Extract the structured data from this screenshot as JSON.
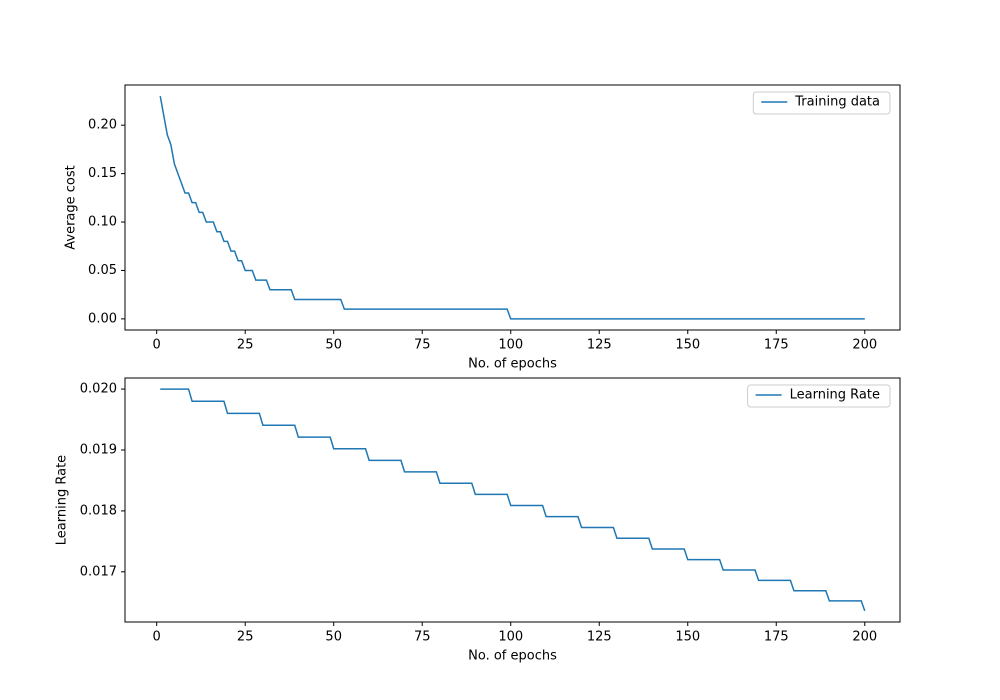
{
  "chart_data": [
    {
      "type": "line",
      "xlabel": "No. of epochs",
      "ylabel": "Average cost",
      "legend": "upper right",
      "x": [
        1,
        2,
        3,
        4,
        5,
        6,
        7,
        8,
        9,
        10,
        11,
        12,
        13,
        14,
        16,
        17,
        18,
        19,
        20,
        21,
        22,
        23,
        24,
        25,
        27,
        28,
        31,
        32,
        38,
        39,
        52,
        53,
        99,
        100,
        200
      ],
      "series": [
        {
          "name": "Training data",
          "color": "#1f77b4",
          "values": [
            0.23,
            0.21,
            0.19,
            0.18,
            0.16,
            0.15,
            0.14,
            0.13,
            0.13,
            0.12,
            0.12,
            0.11,
            0.11,
            0.1,
            0.1,
            0.09,
            0.09,
            0.08,
            0.08,
            0.07,
            0.07,
            0.06,
            0.06,
            0.05,
            0.05,
            0.04,
            0.04,
            0.03,
            0.03,
            0.02,
            0.02,
            0.01,
            0.01,
            0.0,
            0.0
          ]
        }
      ],
      "xlim": [
        -8.95,
        209.95
      ],
      "ylim": [
        -0.0115,
        0.2415
      ],
      "xticks": [
        0,
        25,
        50,
        75,
        100,
        125,
        150,
        175,
        200
      ],
      "yticks": [
        {
          "value": 0,
          "label": "0.00"
        },
        {
          "value": 0.05,
          "label": "0.05"
        },
        {
          "value": 0.1,
          "label": "0.10"
        },
        {
          "value": 0.15,
          "label": "0.15"
        },
        {
          "value": 0.2,
          "label": "0.20"
        }
      ]
    },
    {
      "type": "line",
      "xlabel": "No. of epochs",
      "ylabel": "Learning Rate",
      "legend": "upper right",
      "x": [
        1,
        9,
        10,
        19,
        20,
        29,
        30,
        39,
        40,
        49,
        50,
        59,
        60,
        69,
        70,
        79,
        80,
        89,
        90,
        99,
        100,
        109,
        110,
        119,
        120,
        129,
        130,
        139,
        140,
        149,
        150,
        159,
        160,
        169,
        170,
        179,
        180,
        189,
        190,
        199,
        200
      ],
      "series": [
        {
          "name": "Learning Rate",
          "color": "#1f77b4",
          "values": [
            0.02,
            0.02,
            0.0198,
            0.0198,
            0.019602,
            0.019602,
            0.019406,
            0.019406,
            0.019212,
            0.019212,
            0.01902,
            0.01902,
            0.01883,
            0.01883,
            0.018641,
            0.018641,
            0.018455,
            0.018455,
            0.018271,
            0.018271,
            0.018088,
            0.018088,
            0.017907,
            0.017907,
            0.017728,
            0.017728,
            0.017551,
            0.017551,
            0.017375,
            0.017375,
            0.017201,
            0.017201,
            0.017029,
            0.017029,
            0.016859,
            0.016859,
            0.01669,
            0.01669,
            0.016523,
            0.016523,
            0.016358
          ]
        }
      ],
      "xlim": [
        -8.95,
        209.95
      ],
      "ylim": [
        0.016176,
        0.020182
      ],
      "xticks": [
        0,
        25,
        50,
        75,
        100,
        125,
        150,
        175,
        200
      ],
      "yticks": [
        {
          "value": 0.017,
          "label": "0.017"
        },
        {
          "value": 0.018,
          "label": "0.018"
        },
        {
          "value": 0.019,
          "label": "0.019"
        },
        {
          "value": 0.02,
          "label": "0.020"
        }
      ]
    }
  ]
}
